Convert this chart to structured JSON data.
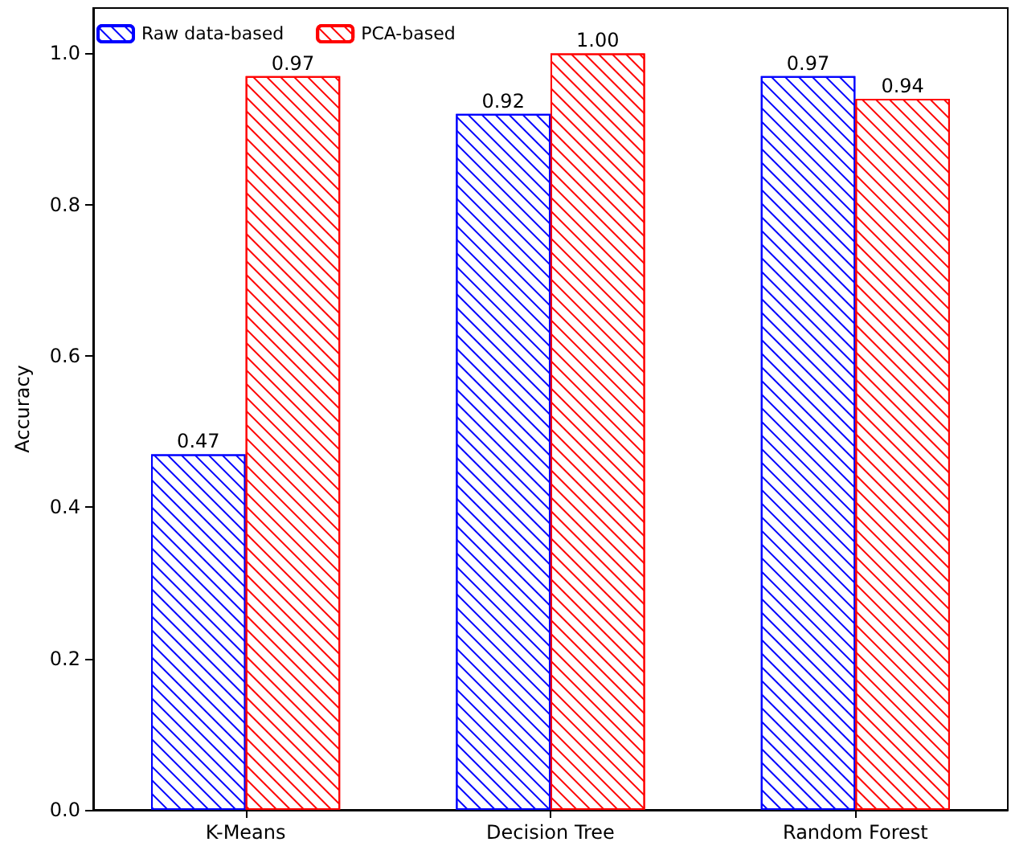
{
  "chart_data": {
    "type": "bar",
    "ylabel": "Accuracy",
    "categories": [
      "K-Means",
      "Decision Tree",
      "Random Forest"
    ],
    "series": [
      {
        "name": "Raw data-based",
        "color": "#0000ff",
        "values": [
          0.47,
          0.92,
          0.97
        ],
        "value_labels": [
          "0.47",
          "0.92",
          "0.97"
        ]
      },
      {
        "name": "PCA-based",
        "color": "#ff0000",
        "values": [
          0.97,
          1.0,
          0.94
        ],
        "value_labels": [
          "0.97",
          "1.00",
          "0.94"
        ]
      }
    ],
    "ylim": [
      0,
      1.06
    ],
    "yticks": [
      {
        "value": 0,
        "label": "0.0"
      },
      {
        "value": 0.2,
        "label": "0.2"
      },
      {
        "value": 0.4,
        "label": "0.4"
      },
      {
        "value": 0.6,
        "label": "0.6"
      },
      {
        "value": 0.8,
        "label": "0.8"
      },
      {
        "value": 1.0,
        "label": "1.0"
      }
    ],
    "grid": false,
    "legend": "top left"
  }
}
